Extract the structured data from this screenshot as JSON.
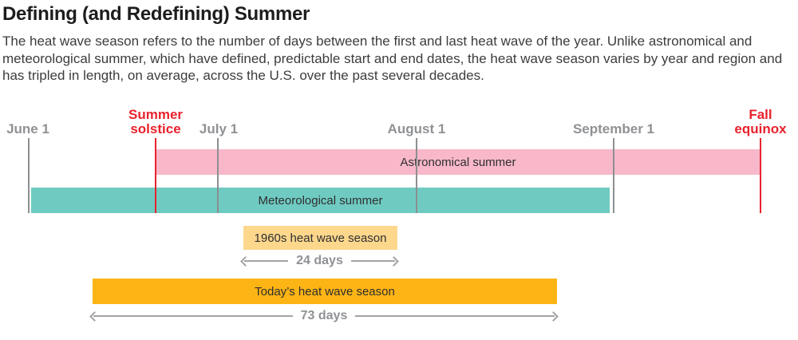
{
  "header": {
    "title": "Defining (and Redefining) Summer",
    "description": "The heat wave season refers to the number of days between the first and last heat wave of the year. Unlike astronomical and meteorological summer, which have defined, predictable start and end dates, the heat wave season varies by year and region and has tripled in length, on average, across the U.S. over the past several decades."
  },
  "timeline": {
    "ticks": [
      {
        "id": "june1",
        "label": "June 1",
        "style": "gray"
      },
      {
        "id": "solstice",
        "label": "Summer solstice",
        "style": "red"
      },
      {
        "id": "july1",
        "label": "July 1",
        "style": "gray"
      },
      {
        "id": "aug1",
        "label": "August 1",
        "style": "gray"
      },
      {
        "id": "sep1",
        "label": "September 1",
        "style": "gray"
      },
      {
        "id": "equinox",
        "label": "Fall equinox",
        "style": "red"
      }
    ],
    "bars": [
      {
        "id": "astro",
        "label": "Astronomical summer"
      },
      {
        "id": "meteo",
        "label": "Meteorological summer"
      },
      {
        "id": "sixties",
        "label": "1960s heat wave season"
      },
      {
        "id": "today",
        "label": "Today’s heat wave season"
      }
    ],
    "ranges": [
      {
        "id": "sixties",
        "label": "24 days"
      },
      {
        "id": "today",
        "label": "73 days"
      }
    ]
  },
  "chart_data": {
    "type": "bar",
    "subtype": "horizontal-timeline-gantt",
    "title": "Defining (and Redefining) Summer",
    "x_axis": {
      "unit": "days since June 1",
      "range": [
        0,
        118
      ],
      "ticks": [
        {
          "label": "June 1",
          "day": 0,
          "color": "gray"
        },
        {
          "label": "Summer solstice",
          "day": 20,
          "color": "red"
        },
        {
          "label": "July 1",
          "day": 30,
          "color": "gray"
        },
        {
          "label": "August 1",
          "day": 61,
          "color": "gray"
        },
        {
          "label": "September 1",
          "day": 92,
          "color": "gray"
        },
        {
          "label": "Fall equinox",
          "day": 115,
          "color": "red"
        }
      ]
    },
    "series": [
      {
        "name": "Astronomical summer",
        "start_day": 20,
        "end_day": 115,
        "start_label": "Summer solstice",
        "end_label": "Fall equinox",
        "color": "#f8b8ca"
      },
      {
        "name": "Meteorological summer",
        "start_day": 0,
        "end_day": 91,
        "start_label": "June 1",
        "end_label": "September 1",
        "color": "#6fcbc2"
      },
      {
        "name": "1960s heat wave season",
        "start_day": 34,
        "end_day": 58,
        "duration_days": 24,
        "duration_label": "24 days",
        "color": "#fcd78c"
      },
      {
        "name": "Today’s heat wave season",
        "start_day": 10,
        "end_day": 83,
        "duration_days": 73,
        "duration_label": "73 days",
        "color": "#fdb415"
      }
    ],
    "legend": "none",
    "grid": "off"
  },
  "colors": {
    "accent_red": "#e8222d",
    "label_gray": "#8f9194",
    "astronomical_pink": "#f8b8ca",
    "meteorological_teal": "#6fcbc2",
    "sixties_yellow": "#fcd78c",
    "today_orange": "#fdb415",
    "title_black": "#1d1d1d",
    "body_text": "#3c3c3c"
  }
}
